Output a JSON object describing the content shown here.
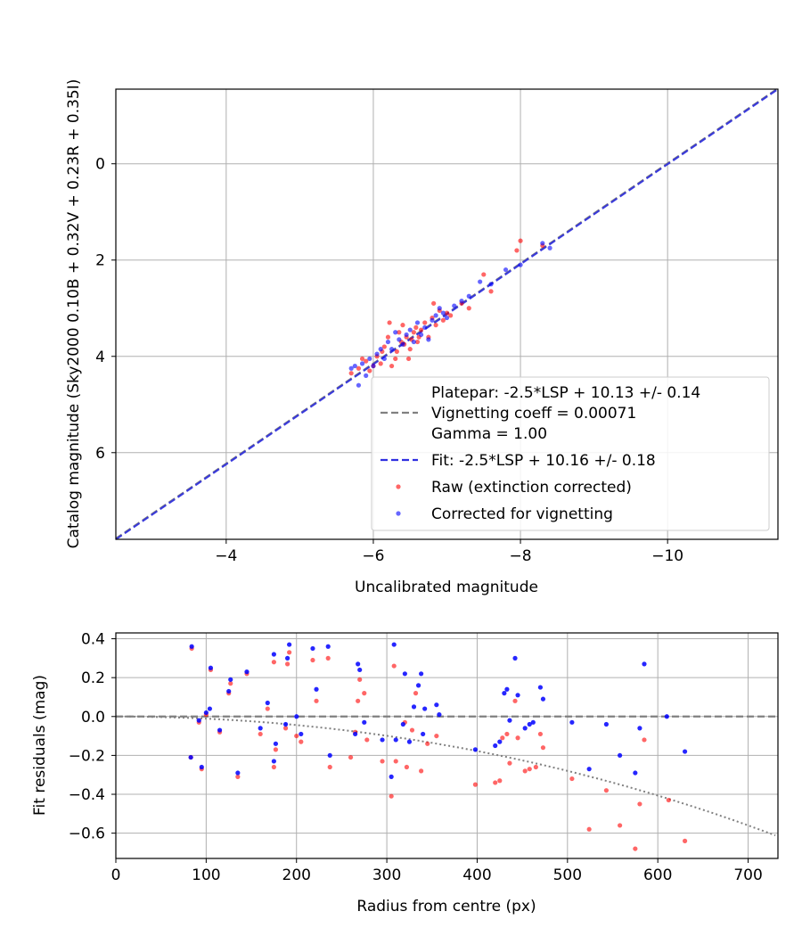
{
  "colors": {
    "raw": "#ff0000",
    "corrected": "#0000ff",
    "platepar_line": "#808080",
    "fit_line": "#3030e0",
    "grid": "#b0b0b0",
    "vignetting_curve": "#808080"
  },
  "chart_data": [
    {
      "type": "scatter",
      "title": "",
      "xlabel": "Uncalibrated magnitude",
      "ylabel": "Catalog magnitude (Sky2000 0.10B + 0.32V + 0.23R + 0.35I)",
      "xlim": [
        -2.5,
        -11.5
      ],
      "ylim": [
        7.8,
        -1.55
      ],
      "x_inverted": true,
      "y_inverted": true,
      "grid": true,
      "x_ticks": [
        -4,
        -6,
        -8,
        -10
      ],
      "x_tick_labels": [
        "−4",
        "−6",
        "−8",
        "−10"
      ],
      "y_ticks": [
        0,
        2,
        4,
        6
      ],
      "y_tick_labels": [
        "0",
        "2",
        "4",
        "6"
      ],
      "legend_position": "lower-right",
      "legend": [
        "Platepar: -2.5*LSP + 10.13 +/- 0.14",
        "Vignetting coeff = 0.00071",
        "Gamma = 1.00",
        "Fit: -2.5*LSP + 10.16 +/- 0.18",
        "Raw (extinction corrected)",
        "Corrected for vignetting"
      ],
      "lines": [
        {
          "name": "Platepar",
          "slope": 1.0,
          "intercept": 10.13,
          "style": "dashed"
        },
        {
          "name": "Fit",
          "slope": 1.0,
          "intercept": 10.16,
          "style": "dashed"
        }
      ],
      "series": [
        {
          "name": "Raw (extinction corrected)",
          "points": [
            [
              -5.7,
              4.35
            ],
            [
              -5.8,
              4.25
            ],
            [
              -5.85,
              4.05
            ],
            [
              -5.9,
              4.1
            ],
            [
              -5.95,
              4.3
            ],
            [
              -6.0,
              4.2
            ],
            [
              -6.05,
              4.0
            ],
            [
              -6.1,
              4.15
            ],
            [
              -6.12,
              3.9
            ],
            [
              -6.15,
              3.8
            ],
            [
              -6.2,
              3.6
            ],
            [
              -6.22,
              3.3
            ],
            [
              -6.25,
              4.2
            ],
            [
              -6.3,
              4.05
            ],
            [
              -6.32,
              3.9
            ],
            [
              -6.35,
              3.5
            ],
            [
              -6.38,
              3.7
            ],
            [
              -6.4,
              3.35
            ],
            [
              -6.42,
              3.75
            ],
            [
              -6.45,
              3.6
            ],
            [
              -6.48,
              4.05
            ],
            [
              -6.5,
              3.85
            ],
            [
              -6.52,
              3.65
            ],
            [
              -6.55,
              3.5
            ],
            [
              -6.58,
              3.4
            ],
            [
              -6.6,
              3.7
            ],
            [
              -6.62,
              3.6
            ],
            [
              -6.65,
              3.45
            ],
            [
              -6.7,
              3.3
            ],
            [
              -6.75,
              3.6
            ],
            [
              -6.8,
              3.2
            ],
            [
              -6.82,
              2.9
            ],
            [
              -6.85,
              3.35
            ],
            [
              -6.9,
              3.05
            ],
            [
              -6.95,
              3.25
            ],
            [
              -7.0,
              3.1
            ],
            [
              -7.05,
              3.15
            ],
            [
              -7.2,
              2.9
            ],
            [
              -7.3,
              3.0
            ],
            [
              -7.5,
              2.3
            ],
            [
              -7.6,
              2.65
            ],
            [
              -7.95,
              1.8
            ],
            [
              -8.0,
              1.6
            ],
            [
              -8.3,
              1.7
            ]
          ]
        },
        {
          "name": "Corrected for vignetting",
          "points": [
            [
              -5.7,
              4.25
            ],
            [
              -5.75,
              4.2
            ],
            [
              -5.8,
              4.6
            ],
            [
              -5.85,
              4.15
            ],
            [
              -5.9,
              4.4
            ],
            [
              -5.95,
              4.05
            ],
            [
              -6.0,
              4.2
            ],
            [
              -6.05,
              3.95
            ],
            [
              -6.1,
              3.85
            ],
            [
              -6.15,
              4.05
            ],
            [
              -6.2,
              3.7
            ],
            [
              -6.25,
              3.85
            ],
            [
              -6.3,
              3.5
            ],
            [
              -6.35,
              3.65
            ],
            [
              -6.4,
              3.75
            ],
            [
              -6.45,
              3.55
            ],
            [
              -6.5,
              3.45
            ],
            [
              -6.55,
              3.7
            ],
            [
              -6.6,
              3.3
            ],
            [
              -6.65,
              3.55
            ],
            [
              -6.7,
              3.4
            ],
            [
              -6.75,
              3.65
            ],
            [
              -6.8,
              3.25
            ],
            [
              -6.85,
              3.15
            ],
            [
              -6.9,
              3.0
            ],
            [
              -6.95,
              3.1
            ],
            [
              -7.0,
              3.2
            ],
            [
              -7.1,
              2.95
            ],
            [
              -7.2,
              2.85
            ],
            [
              -7.3,
              2.75
            ],
            [
              -7.45,
              2.45
            ],
            [
              -7.6,
              2.5
            ],
            [
              -7.8,
              2.2
            ],
            [
              -8.0,
              2.1
            ],
            [
              -8.3,
              1.65
            ],
            [
              -8.4,
              1.75
            ]
          ]
        }
      ]
    },
    {
      "type": "scatter",
      "title": "",
      "xlabel": "Radius from centre (px)",
      "ylabel": "Fit residuals (mag)",
      "xlim": [
        0,
        733
      ],
      "ylim": [
        -0.73,
        0.43
      ],
      "grid": true,
      "x_ticks": [
        0,
        100,
        200,
        300,
        400,
        500,
        600,
        700
      ],
      "x_tick_labels": [
        "0",
        "100",
        "200",
        "300",
        "400",
        "500",
        "600",
        "700"
      ],
      "y_ticks": [
        0.4,
        0.2,
        0.0,
        -0.2,
        -0.4,
        -0.6
      ],
      "y_tick_labels": [
        "0.4",
        "0.2",
        "0.0",
        "−0.2",
        "−0.4",
        "−0.6"
      ],
      "zero_line": 0,
      "vignetting_coeff": 0.00071,
      "series": [
        {
          "name": "Raw (extinction corrected)",
          "points": [
            [
              84,
              0.35
            ],
            [
              83,
              -0.21
            ],
            [
              92,
              -0.03
            ],
            [
              95,
              -0.27
            ],
            [
              100,
              0.01
            ],
            [
              105,
              0.24
            ],
            [
              115,
              -0.08
            ],
            [
              125,
              0.12
            ],
            [
              127,
              0.17
            ],
            [
              135,
              -0.31
            ],
            [
              145,
              0.22
            ],
            [
              160,
              -0.09
            ],
            [
              168,
              0.04
            ],
            [
              175,
              0.28
            ],
            [
              175,
              -0.26
            ],
            [
              177,
              -0.17
            ],
            [
              188,
              -0.06
            ],
            [
              190,
              0.27
            ],
            [
              192,
              0.33
            ],
            [
              200,
              -0.1
            ],
            [
              205,
              -0.13
            ],
            [
              218,
              0.29
            ],
            [
              222,
              0.08
            ],
            [
              235,
              0.3
            ],
            [
              237,
              -0.26
            ],
            [
              260,
              -0.21
            ],
            [
              265,
              -0.08
            ],
            [
              268,
              0.08
            ],
            [
              270,
              0.19
            ],
            [
              275,
              0.12
            ],
            [
              278,
              -0.12
            ],
            [
              295,
              -0.23
            ],
            [
              305,
              -0.41
            ],
            [
              308,
              0.26
            ],
            [
              310,
              -0.23
            ],
            [
              320,
              -0.03
            ],
            [
              322,
              -0.26
            ],
            [
              328,
              -0.07
            ],
            [
              332,
              0.12
            ],
            [
              338,
              -0.28
            ],
            [
              345,
              -0.14
            ],
            [
              355,
              -0.1
            ],
            [
              398,
              -0.35
            ],
            [
              420,
              -0.34
            ],
            [
              425,
              -0.33
            ],
            [
              428,
              -0.11
            ],
            [
              433,
              -0.09
            ],
            [
              436,
              -0.24
            ],
            [
              442,
              0.08
            ],
            [
              445,
              -0.11
            ],
            [
              453,
              -0.28
            ],
            [
              458,
              -0.27
            ],
            [
              465,
              -0.26
            ],
            [
              470,
              -0.09
            ],
            [
              473,
              -0.16
            ],
            [
              505,
              -0.32
            ],
            [
              524,
              -0.58
            ],
            [
              543,
              -0.38
            ],
            [
              558,
              -0.56
            ],
            [
              575,
              -0.68
            ],
            [
              580,
              -0.45
            ],
            [
              585,
              -0.12
            ],
            [
              612,
              -0.43
            ],
            [
              630,
              -0.64
            ]
          ]
        },
        {
          "name": "Corrected for vignetting",
          "points": [
            [
              84,
              0.36
            ],
            [
              83,
              -0.21
            ],
            [
              92,
              -0.02
            ],
            [
              95,
              -0.26
            ],
            [
              100,
              0.02
            ],
            [
              104,
              0.04
            ],
            [
              105,
              0.25
            ],
            [
              115,
              -0.07
            ],
            [
              125,
              0.13
            ],
            [
              127,
              0.19
            ],
            [
              135,
              -0.29
            ],
            [
              145,
              0.23
            ],
            [
              160,
              -0.06
            ],
            [
              168,
              0.07
            ],
            [
              175,
              0.32
            ],
            [
              175,
              -0.23
            ],
            [
              177,
              -0.14
            ],
            [
              188,
              -0.04
            ],
            [
              190,
              0.3
            ],
            [
              192,
              0.37
            ],
            [
              200,
              0.0
            ],
            [
              205,
              -0.09
            ],
            [
              218,
              0.35
            ],
            [
              222,
              0.14
            ],
            [
              235,
              0.36
            ],
            [
              237,
              -0.2
            ],
            [
              265,
              -0.09
            ],
            [
              268,
              0.27
            ],
            [
              270,
              0.24
            ],
            [
              275,
              -0.03
            ],
            [
              295,
              -0.12
            ],
            [
              305,
              -0.31
            ],
            [
              308,
              0.37
            ],
            [
              310,
              -0.12
            ],
            [
              318,
              -0.04
            ],
            [
              320,
              0.22
            ],
            [
              325,
              -0.13
            ],
            [
              330,
              0.05
            ],
            [
              335,
              0.16
            ],
            [
              338,
              0.22
            ],
            [
              340,
              -0.09
            ],
            [
              342,
              0.04
            ],
            [
              355,
              0.06
            ],
            [
              358,
              0.01
            ],
            [
              398,
              -0.17
            ],
            [
              420,
              -0.15
            ],
            [
              425,
              -0.13
            ],
            [
              430,
              0.12
            ],
            [
              433,
              0.14
            ],
            [
              436,
              -0.02
            ],
            [
              442,
              0.3
            ],
            [
              445,
              0.11
            ],
            [
              453,
              -0.06
            ],
            [
              458,
              -0.04
            ],
            [
              462,
              -0.03
            ],
            [
              470,
              0.15
            ],
            [
              473,
              0.09
            ],
            [
              505,
              -0.03
            ],
            [
              524,
              -0.27
            ],
            [
              543,
              -0.04
            ],
            [
              558,
              -0.2
            ],
            [
              575,
              -0.29
            ],
            [
              580,
              -0.06
            ],
            [
              585,
              0.27
            ],
            [
              610,
              0.0
            ],
            [
              630,
              -0.18
            ]
          ]
        }
      ]
    }
  ]
}
